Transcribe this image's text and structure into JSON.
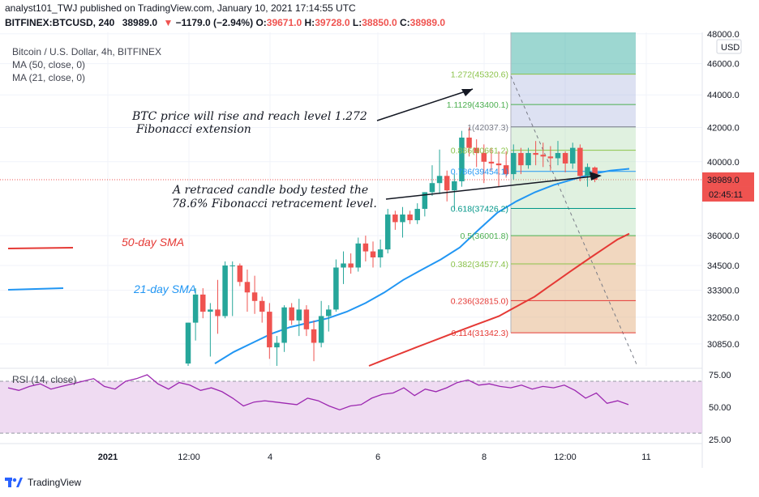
{
  "header": {
    "line1_user": "analyst101_TWJ",
    "line1_text": " published on TradingView.com, January 10, 2021 17:14:55 UTC",
    "symbol": "BITFINEX:BTCUSD, 240",
    "last": "38989.0",
    "change": "−1179.0 (−2.94%)",
    "o_label": "O:",
    "o": "39671.0",
    "h_label": "H:",
    "h": "39728.0",
    "l_label": "L:",
    "l": "38850.0",
    "c_label": "C:",
    "c": "38989.0"
  },
  "legend": {
    "title": "Bitcoin / U.S. Dollar, 4h, BITFINEX",
    "ma50": "MA (50, close, 0)",
    "ma21": "MA (21, close, 0)"
  },
  "annotations": {
    "fib_ext_line1": "BTC price will rise and reach level 1.272",
    "fib_ext_line2": "Fibonacci extension",
    "retrace_line1": "A retraced candle body tested the",
    "retrace_line2": "78.6% Fibonacci retracement level.",
    "sma50": "50-day SMA",
    "sma21": "21-day SMA"
  },
  "rsi_label": "RSI (14, close)",
  "footer": {
    "brand": "TradingView"
  },
  "colors": {
    "up": "#26a69a",
    "down": "#ef5350",
    "sma50": "#e53935",
    "sma21": "#2196f3",
    "rsi": "#9c27b0",
    "rsi_band": "#e1bee7",
    "price_tag": "#ef5350"
  },
  "chart_data": [
    {
      "type": "candlestick",
      "title": "Bitcoin / U.S. Dollar, 4h, BITFINEX",
      "currency": "USD",
      "ylim": [
        29900,
        48100
      ],
      "y_scale": "log",
      "y_ticks": [
        "48000.0",
        "46000.0",
        "44000.0",
        "42000.0",
        "40000.0",
        "38989.0",
        "36000.0",
        "34500.0",
        "33300.0",
        "32050.0",
        "30850.0"
      ],
      "price_tag": "38989.0",
      "countdown_tag": "02:45:11",
      "x_ticks": [
        "2021",
        "12:00",
        "4",
        "6",
        "8",
        "12:00",
        "11"
      ],
      "candles": [
        {
          "o": 30000,
          "h": 31800,
          "l": 29900,
          "c": 31800
        },
        {
          "o": 31800,
          "h": 33400,
          "l": 31000,
          "c": 33100
        },
        {
          "o": 33100,
          "h": 33400,
          "l": 32000,
          "c": 32300
        },
        {
          "o": 32300,
          "h": 32700,
          "l": 30300,
          "c": 32400
        },
        {
          "o": 32400,
          "h": 33800,
          "l": 31300,
          "c": 32100
        },
        {
          "o": 32100,
          "h": 34700,
          "l": 32000,
          "c": 34500
        },
        {
          "o": 34500,
          "h": 34700,
          "l": 32100,
          "c": 34500
        },
        {
          "o": 34500,
          "h": 34600,
          "l": 33500,
          "c": 33700
        },
        {
          "o": 33700,
          "h": 34300,
          "l": 32300,
          "c": 33200
        },
        {
          "o": 33200,
          "h": 34000,
          "l": 32200,
          "c": 32800
        },
        {
          "o": 32800,
          "h": 33000,
          "l": 31800,
          "c": 32300
        },
        {
          "o": 32300,
          "h": 32700,
          "l": 30200,
          "c": 30700
        },
        {
          "o": 30700,
          "h": 31200,
          "l": 29900,
          "c": 30900
        },
        {
          "o": 30900,
          "h": 32600,
          "l": 30500,
          "c": 32500
        },
        {
          "o": 32500,
          "h": 32700,
          "l": 31700,
          "c": 31900
        },
        {
          "o": 31900,
          "h": 32900,
          "l": 31200,
          "c": 32400
        },
        {
          "o": 32400,
          "h": 32600,
          "l": 31200,
          "c": 31500
        },
        {
          "o": 31500,
          "h": 31900,
          "l": 30100,
          "c": 30900
        },
        {
          "o": 30900,
          "h": 32800,
          "l": 30700,
          "c": 32100
        },
        {
          "o": 32100,
          "h": 32600,
          "l": 31400,
          "c": 32400
        },
        {
          "o": 32400,
          "h": 34800,
          "l": 32300,
          "c": 34400
        },
        {
          "o": 34400,
          "h": 35200,
          "l": 33600,
          "c": 34600
        },
        {
          "o": 34600,
          "h": 35100,
          "l": 34100,
          "c": 34400
        },
        {
          "o": 34400,
          "h": 35900,
          "l": 34200,
          "c": 35600
        },
        {
          "o": 35600,
          "h": 36000,
          "l": 34700,
          "c": 35200
        },
        {
          "o": 35200,
          "h": 35700,
          "l": 34400,
          "c": 34900
        },
        {
          "o": 34900,
          "h": 35800,
          "l": 34400,
          "c": 35300
        },
        {
          "o": 35300,
          "h": 37400,
          "l": 35100,
          "c": 37100
        },
        {
          "o": 37100,
          "h": 37300,
          "l": 36300,
          "c": 36700
        },
        {
          "o": 36700,
          "h": 37500,
          "l": 35900,
          "c": 37100
        },
        {
          "o": 37100,
          "h": 37300,
          "l": 36600,
          "c": 36800
        },
        {
          "o": 36800,
          "h": 37700,
          "l": 36600,
          "c": 37400
        },
        {
          "o": 37400,
          "h": 38300,
          "l": 37000,
          "c": 38300
        },
        {
          "o": 38300,
          "h": 39800,
          "l": 38100,
          "c": 38800
        },
        {
          "o": 38800,
          "h": 40700,
          "l": 38200,
          "c": 39200
        },
        {
          "o": 39200,
          "h": 39500,
          "l": 37800,
          "c": 38400
        },
        {
          "o": 38400,
          "h": 39300,
          "l": 37400,
          "c": 38900
        },
        {
          "o": 38900,
          "h": 41800,
          "l": 38600,
          "c": 41400
        },
        {
          "o": 41400,
          "h": 42000,
          "l": 40300,
          "c": 40800
        },
        {
          "o": 40800,
          "h": 41300,
          "l": 39700,
          "c": 40500
        },
        {
          "o": 40500,
          "h": 41000,
          "l": 38800,
          "c": 40000
        },
        {
          "o": 40000,
          "h": 40800,
          "l": 39500,
          "c": 39900
        },
        {
          "o": 39900,
          "h": 40600,
          "l": 38600,
          "c": 39800
        },
        {
          "o": 39800,
          "h": 40600,
          "l": 39100,
          "c": 39300
        },
        {
          "o": 39300,
          "h": 41000,
          "l": 39000,
          "c": 40500
        },
        {
          "o": 40500,
          "h": 40800,
          "l": 39300,
          "c": 39800
        },
        {
          "o": 39800,
          "h": 40800,
          "l": 39600,
          "c": 40500
        },
        {
          "o": 40500,
          "h": 41200,
          "l": 39800,
          "c": 40400
        },
        {
          "o": 40400,
          "h": 41100,
          "l": 39700,
          "c": 40300
        },
        {
          "o": 40300,
          "h": 40900,
          "l": 39500,
          "c": 40200
        },
        {
          "o": 40200,
          "h": 41200,
          "l": 39800,
          "c": 40500
        },
        {
          "o": 40500,
          "h": 40600,
          "l": 39400,
          "c": 39900
        },
        {
          "o": 39900,
          "h": 41100,
          "l": 39600,
          "c": 40800
        },
        {
          "o": 40800,
          "h": 41000,
          "l": 38900,
          "c": 39200
        },
        {
          "o": 39200,
          "h": 39900,
          "l": 38600,
          "c": 39700
        },
        {
          "o": 39671,
          "h": 39728,
          "l": 38850,
          "c": 38989
        }
      ],
      "sma50": [
        29900,
        30100,
        30300,
        30500,
        30700,
        30900,
        31100,
        31300,
        31500,
        31700,
        31900,
        32100,
        32400,
        32700,
        33000,
        33400,
        33800,
        34200,
        34600,
        35000,
        35400,
        35800,
        36100
      ],
      "sma21": [
        30000,
        30500,
        30900,
        31300,
        31600,
        31800,
        32000,
        32300,
        32700,
        33200,
        33800,
        34300,
        34800,
        35400,
        36300,
        37200,
        37800,
        38300,
        38700,
        39000,
        39300,
        39500,
        39600
      ],
      "fibonacci": [
        {
          "level": "1.272",
          "price": 45320.6,
          "label": "1.272(45320.6)",
          "color": "#8bc34a"
        },
        {
          "level": "1.1129",
          "price": 43400.1,
          "label": "1.1129(43400.1)",
          "color": "#4caf50"
        },
        {
          "level": "1",
          "price": 42037.3,
          "label": "1(42037.3)",
          "color": "#787b86"
        },
        {
          "level": "0.886",
          "price": 40661.2,
          "label": "0.886(40661.2)",
          "color": "#8bc34a"
        },
        {
          "level": "0.786",
          "price": 39454.1,
          "label": "0.786(39454.1)",
          "color": "#2196f3"
        },
        {
          "level": "0.618",
          "price": 37426.2,
          "label": "0.618(37426.2)",
          "color": "#009688"
        },
        {
          "level": "0.5",
          "price": 36001.8,
          "label": "0.5(36001.8)",
          "color": "#4caf50"
        },
        {
          "level": "0.382",
          "price": 34577.4,
          "label": "0.382(34577.4)",
          "color": "#8bc34a"
        },
        {
          "level": "0.236",
          "price": 32815.0,
          "label": "0.236(32815.0)",
          "color": "#e53935"
        },
        {
          "level": "0.114",
          "price": 31342.3,
          "label": "0.114(31342.3)",
          "color": "#e53935"
        }
      ]
    },
    {
      "type": "line",
      "title": "RSI (14, close)",
      "ylim": [
        22,
        80
      ],
      "y_ticks": [
        "75.00",
        "50.00",
        "25.00"
      ],
      "band": [
        30,
        70
      ],
      "values": [
        65,
        63,
        66,
        68,
        64,
        66,
        68,
        70,
        72,
        66,
        64,
        70,
        72,
        75,
        68,
        64,
        69,
        67,
        63,
        65,
        62,
        57,
        51,
        54,
        55,
        54,
        53,
        52,
        57,
        55,
        51,
        48,
        51,
        52,
        57,
        60,
        61,
        65,
        59,
        64,
        62,
        65,
        69,
        71,
        67,
        68,
        66,
        65,
        67,
        64,
        66,
        65,
        67,
        63,
        57,
        61,
        53,
        55,
        52
      ]
    }
  ]
}
